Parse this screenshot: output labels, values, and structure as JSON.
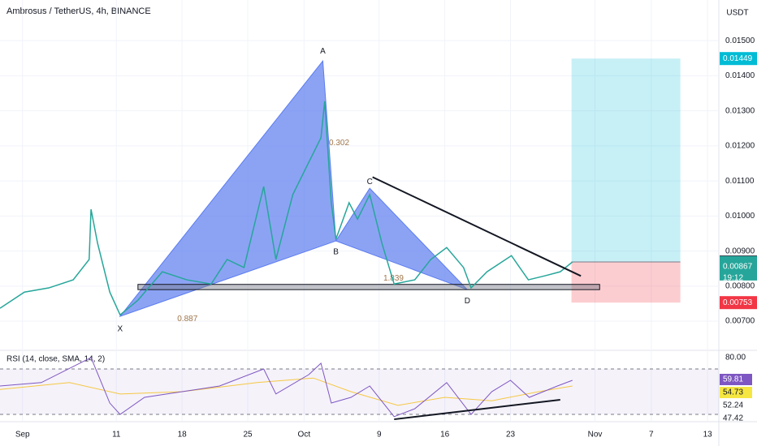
{
  "header": {
    "title": "Ambrosus / TetherUS, 4h, BINANCE",
    "currency": "USDT"
  },
  "chart_data": {
    "type": "line",
    "xlim": [
      -2.4,
      74.2
    ],
    "xticks": [
      {
        "value": 0,
        "label": "Sep"
      },
      {
        "value": 10,
        "label": "11"
      },
      {
        "value": 17,
        "label": "18"
      },
      {
        "value": 24,
        "label": "25"
      },
      {
        "value": 30,
        "label": "Oct"
      },
      {
        "value": 38,
        "label": "9"
      },
      {
        "value": 45,
        "label": "16"
      },
      {
        "value": 52,
        "label": "23"
      },
      {
        "value": 61,
        "label": "Nov"
      },
      {
        "value": 67,
        "label": "7"
      },
      {
        "value": 73,
        "label": "13"
      }
    ],
    "ylim": [
      0.00617,
      0.01616
    ],
    "yticks": [
      {
        "value": 0.015,
        "label": "0.01500"
      },
      {
        "value": 0.014,
        "label": "0.01400"
      },
      {
        "value": 0.013,
        "label": "0.01300"
      },
      {
        "value": 0.012,
        "label": "0.01200"
      },
      {
        "value": 0.011,
        "label": "0.01100"
      },
      {
        "value": 0.01,
        "label": "0.01000"
      },
      {
        "value": 0.009,
        "label": "0.00900"
      },
      {
        "value": 0.008,
        "label": "0.00800"
      },
      {
        "value": 0.007,
        "label": "0.00700"
      }
    ],
    "grid": true,
    "price": {
      "color": "#26a69a",
      "x": [
        -2.4,
        0.2,
        2.8,
        5.4,
        7.1,
        7.3,
        8.0,
        9.3,
        10.4,
        12.3,
        14.9,
        17.5,
        20.1,
        21.8,
        23.6,
        25.7,
        27.0,
        28.8,
        30.5,
        31.8,
        32.2,
        32.9,
        33.4,
        34.8,
        35.7,
        37.0,
        38.3,
        39.6,
        41.8,
        43.5,
        45.2,
        47.0,
        47.8,
        49.5,
        52.1,
        53.9,
        55.6,
        57.3,
        58.6
      ],
      "values": [
        0.00737,
        0.00783,
        0.00795,
        0.00818,
        0.00876,
        0.01019,
        0.00922,
        0.00783,
        0.00718,
        0.0076,
        0.00841,
        0.00818,
        0.00806,
        0.00876,
        0.00853,
        0.01084,
        0.00876,
        0.01061,
        0.01153,
        0.01223,
        0.01327,
        0.01038,
        0.00934,
        0.01038,
        0.00991,
        0.01061,
        0.00922,
        0.00806,
        0.00818,
        0.00876,
        0.0091,
        0.00853,
        0.00795,
        0.00841,
        0.00887,
        0.00818,
        0.00829,
        0.00841,
        0.00869
      ]
    },
    "pattern": {
      "color": "#5b7cf0",
      "points": [
        {
          "label": "X",
          "x": 10.4,
          "y": 0.00714
        },
        {
          "label": "A",
          "x": 32.0,
          "y": 0.01442
        },
        {
          "label": "B",
          "x": 33.4,
          "y": 0.00929
        },
        {
          "label": "C",
          "x": 37.0,
          "y": 0.01079
        },
        {
          "label": "D",
          "x": 47.4,
          "y": 0.0079
        }
      ],
      "ratios": [
        "0.302",
        "0.887",
        "1.839"
      ]
    },
    "trendline": {
      "x": [
        37.3,
        59.5
      ],
      "y": [
        0.01111,
        0.00829
      ],
      "color": "#131722"
    },
    "support": {
      "x": [
        12.3,
        61.5
      ],
      "y": [
        0.0079,
        0.00805
      ]
    },
    "position": {
      "x": [
        58.5,
        70.1
      ],
      "target": 0.01449,
      "entry": 0.00869,
      "stop": 0.00753
    },
    "last_price": {
      "value": 0.00867,
      "countdown": "19:12"
    }
  },
  "rsi_chart": {
    "type": "line",
    "title": "RSI (14, close, SMA, 14, 2)",
    "ylim": [
      23.6,
      85.7
    ],
    "yticks": [
      {
        "value": 80,
        "label": "80.00"
      }
    ],
    "bands": [
      70,
      30
    ],
    "rsi": {
      "color": "#7e57c2",
      "x": [
        -2.4,
        2,
        7.3,
        9.3,
        10.4,
        13,
        17,
        21,
        25.7,
        27,
        30.5,
        31.8,
        32.9,
        35,
        37,
        39.6,
        41.8,
        45.2,
        47.8,
        50,
        52,
        54,
        57,
        58.6
      ],
      "values": [
        55,
        58,
        80,
        40,
        30,
        45,
        50,
        55,
        70,
        48,
        65,
        75,
        40,
        45,
        55,
        28,
        35,
        58,
        30,
        50,
        60,
        45,
        55,
        60
      ]
    },
    "sma": {
      "color": "#f5c842",
      "x": [
        -2.4,
        5,
        10.4,
        17,
        25,
        31,
        35,
        40,
        45,
        50,
        55,
        58.6
      ],
      "values": [
        52,
        58,
        48,
        50,
        58,
        62,
        50,
        38,
        45,
        42,
        50,
        55
      ]
    },
    "trendline": {
      "x": [
        39.6,
        57.3
      ],
      "y": [
        25.7,
        42.9
      ]
    },
    "badges": [
      59.81,
      54.73,
      52.24,
      47.42
    ]
  }
}
